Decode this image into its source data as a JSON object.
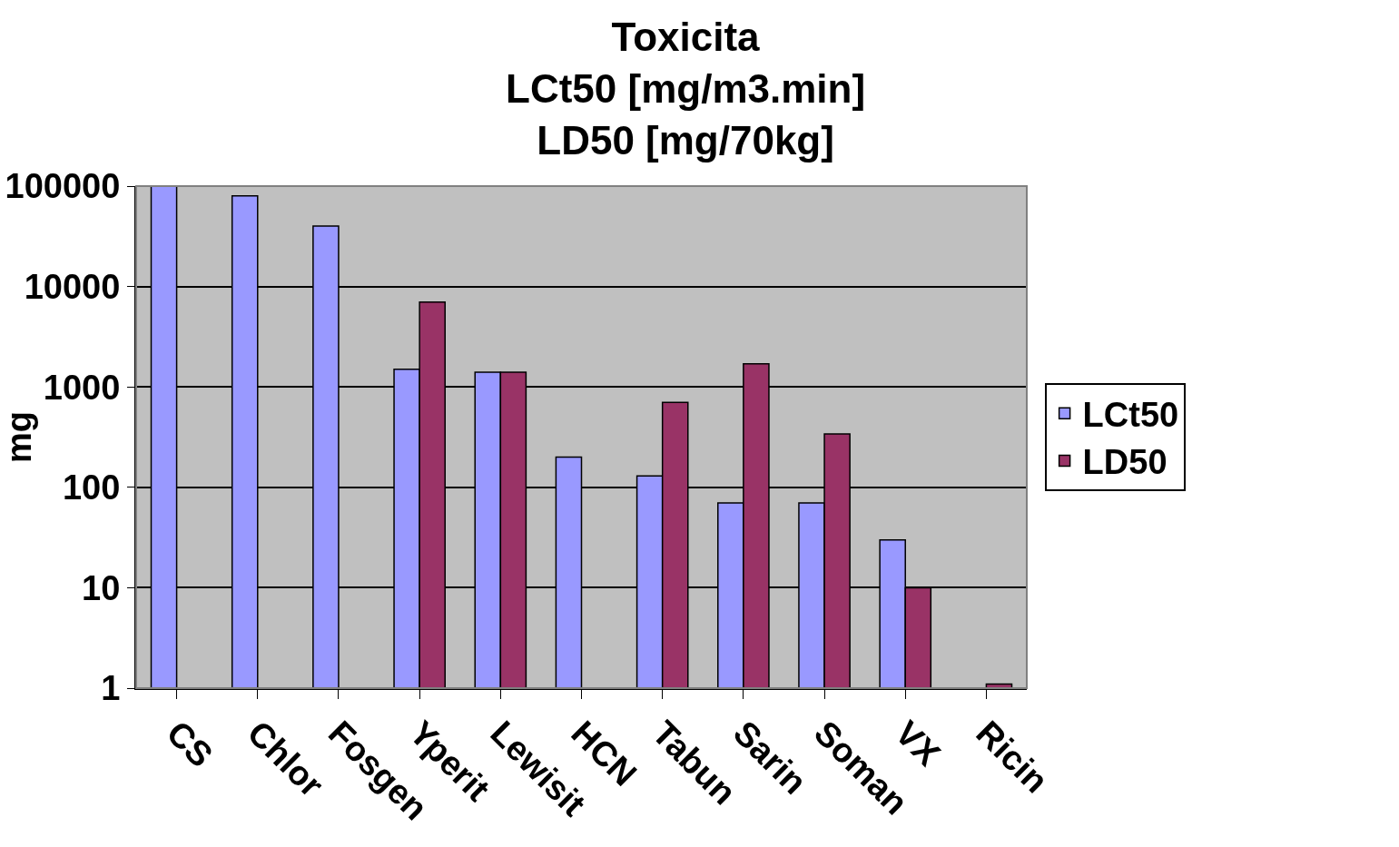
{
  "chart_data": {
    "type": "bar",
    "title": "Toxicita\nLCt50 [mg/m3.min]\nLD50 [mg/70kg]",
    "ylabel": "mg",
    "categories": [
      "CS",
      "Chlor",
      "Fosgen",
      "Yperit",
      "Lewisit",
      "HCN",
      "Tabun",
      "Sarin",
      "Soman",
      "VX",
      "Ricin"
    ],
    "series": [
      {
        "name": "LCt50",
        "color": "#9999ff",
        "values": [
          100000,
          80000,
          40000,
          1500,
          1400,
          200,
          130,
          70,
          70,
          30,
          null
        ]
      },
      {
        "name": "LD50",
        "color": "#993366",
        "values": [
          null,
          null,
          null,
          7000,
          1400,
          null,
          700,
          1700,
          340,
          10,
          1.1
        ]
      }
    ],
    "log": true,
    "ylim": [
      1,
      100000
    ],
    "yticks": [
      1,
      10,
      100,
      1000,
      10000,
      100000
    ],
    "grid": "y",
    "legend": "right"
  }
}
